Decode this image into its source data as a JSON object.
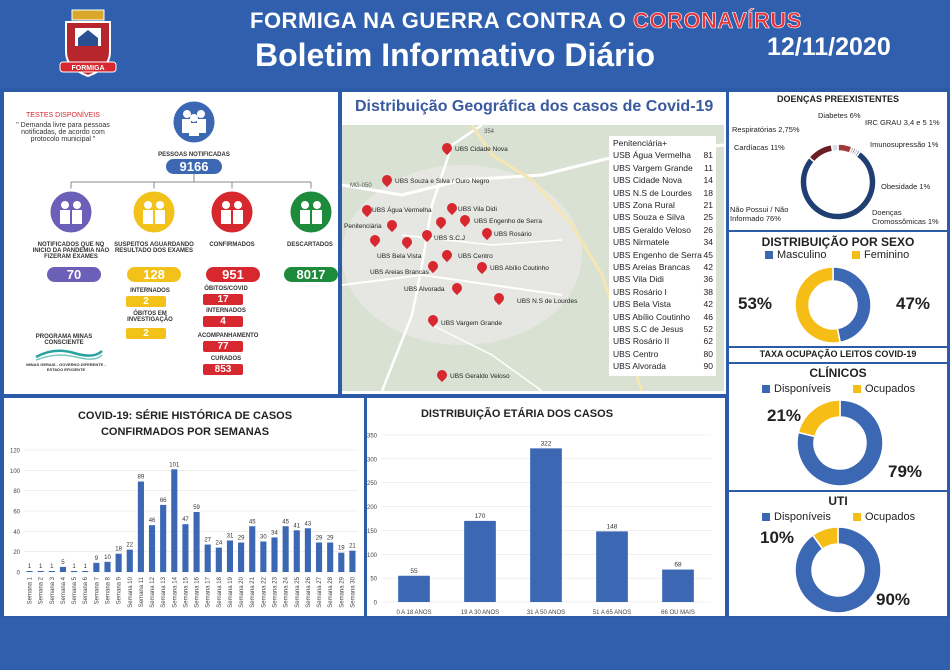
{
  "header": {
    "title_prefix": "FORMIGA NA GUERRA CONTRA O ",
    "title_highlight": "CORONAVÍRUS",
    "subtitle": "Boletim Informativo Diário",
    "date": "12/11/2020",
    "seal_text": "FORMIGA"
  },
  "tests": {
    "title": "TESTES DISPONÍVEIS",
    "note": "\" Demanda livre para pessoas notificadas, de acordo com protocolo municipal \""
  },
  "notified": {
    "label": "PESSOAS NOTIFICADAS",
    "value": "9166"
  },
  "categories": [
    {
      "label": "NOTIFICADOS QUE NO INICIO DA PANDEMIA NÃO FIZERAM EXAMES",
      "value": "70",
      "color": "#6c5fb7"
    },
    {
      "label": "SUSPEITOS AGUARDANDO RESULTADO DOS EXAMES",
      "value": "128",
      "color": "#f2c21a"
    },
    {
      "label": "CONFIRMADOS",
      "value": "951",
      "color": "#d7282f"
    },
    {
      "label": "DESCARTADOS",
      "value": "8017",
      "color": "#1e8a3c"
    }
  ],
  "suspects_sub": [
    {
      "label": "INTERNADOS",
      "value": "2"
    },
    {
      "label": "ÓBITOS EM INVESTIGAÇÃO",
      "value": "2"
    }
  ],
  "confirmed_sub": [
    {
      "label": "ÓBITOS/COVID",
      "value": "17"
    },
    {
      "label": "INTERNADOS",
      "value": "4"
    },
    {
      "label": "ACOMPANHAMENTO",
      "value": "77"
    },
    {
      "label": "CURADOS",
      "value": "853"
    }
  ],
  "program": {
    "label": "PROGRAMA MINAS CONSCIENTE",
    "caption": "MINAS GERAIS - GOVERNO DIFERENTE - ESTADO EFICIENTE"
  },
  "map": {
    "title": "Distribuição Geográfica dos casos de Covid-19",
    "road_labels": [
      "354",
      "MG-050"
    ],
    "pins": [
      {
        "label": "UBS Cidade Nova"
      },
      {
        "label": "UBS Souza e Silva / Ouro Negro"
      },
      {
        "label": "UBS Vila Didi"
      },
      {
        "label": "UBS Água Vermelha"
      },
      {
        "label": "UBS Engenho de Serra"
      },
      {
        "label": "Penitenciária"
      },
      {
        "label": "UBS S.C.J"
      },
      {
        "label": "UBS Rosário"
      },
      {
        "label": "UBS Bela Vista"
      },
      {
        "label": "UBS Centro"
      },
      {
        "label": "UBS Areias Brancas"
      },
      {
        "label": "UBS Abílio Coutinho"
      },
      {
        "label": "UBS Alvorada"
      },
      {
        "label": "UBS N.S de Lourdes"
      },
      {
        "label": "UBS Vargem Grande"
      },
      {
        "label": "UBS Geraldo Veloso"
      }
    ],
    "legend": [
      {
        "name": "Penitenciária+",
        "value": ""
      },
      {
        "name": "USB Água Vermelha",
        "value": "81"
      },
      {
        "name": "UBS Vargem Grande",
        "value": "11"
      },
      {
        "name": "UBS Cidade Nova",
        "value": "14"
      },
      {
        "name": "UBS N.S de Lourdes",
        "value": "18"
      },
      {
        "name": "UBS Zona Rural",
        "value": "21"
      },
      {
        "name": "UBS Souza e Silva",
        "value": "25"
      },
      {
        "name": "UBS Geraldo Veloso",
        "value": "26"
      },
      {
        "name": "UBS Nirmatele",
        "value": "34"
      },
      {
        "name": "UBS Engenho de Serra",
        "value": "45"
      },
      {
        "name": "UBS Areias Brancas",
        "value": "42"
      },
      {
        "name": "UBS Vila Didi",
        "value": "36"
      },
      {
        "name": "UBS Rosário I",
        "value": "38"
      },
      {
        "name": "UBS Bela Vista",
        "value": "42"
      },
      {
        "name": "UBS Abílio Coutinho",
        "value": "46"
      },
      {
        "name": "UBS S.C de Jesus",
        "value": "52"
      },
      {
        "name": "UBS Rosário II",
        "value": "62"
      },
      {
        "name": "UBS Centro",
        "value": "80"
      },
      {
        "name": "UBS Alvorada",
        "value": "90"
      }
    ]
  },
  "preexisting": {
    "title": "DOENÇAS PREEXISTENTES",
    "items": [
      {
        "label": "Diabetes 6%",
        "value": 6,
        "color": "#a33a3a"
      },
      {
        "label": "IRC GRAU 3,4 e 5 1%",
        "value": 1,
        "color": "#6a9fd4"
      },
      {
        "label": "Imunosupressão 1%",
        "value": 1,
        "color": "#c94a4a"
      },
      {
        "label": "Obesidade 1%",
        "value": 1,
        "color": "#8aa6c9"
      },
      {
        "label": "Doenças Cromossômicas 1%",
        "value": 1,
        "color": "#3f6fb0"
      },
      {
        "label": "Não Possui / Não Informado 76%",
        "value": 76,
        "color": "#1f3f73"
      },
      {
        "label": "Cardíacas 11%",
        "value": 11,
        "color": "#6b1f24"
      },
      {
        "label": "Respiratórias 2,75%",
        "value": 2.75,
        "color": "#d8dfe9"
      }
    ]
  },
  "sex": {
    "title": "DISTRIBUIÇÃO POR SEXO",
    "legend": [
      "Masculino",
      "Feminino"
    ],
    "male_pct_label": "47%",
    "female_pct_label": "53%",
    "male": 47,
    "female": 53,
    "colors": [
      "#3b67b3",
      "#f6bd16"
    ]
  },
  "beds": {
    "title": "TAXA OCUPAÇÃO LEITOS COVID-19",
    "clinicos": {
      "title": "CLÍNICOS",
      "legend": [
        "Disponíveis",
        "Ocupados"
      ],
      "available": 79,
      "occupied": 21,
      "available_label": "79%",
      "occupied_label": "21%"
    },
    "uti": {
      "title": "UTI",
      "legend": [
        "Disponíveis",
        "Ocupados"
      ],
      "available": 90,
      "occupied": 10,
      "available_label": "90%",
      "occupied_label": "10%"
    }
  },
  "chart_data": [
    {
      "type": "bar",
      "title": "COVID-19: SÉRIE HISTÓRICA DE CASOS CONFIRMADOS POR SEMANAS",
      "categories": [
        "Semana 1",
        "Semana 2",
        "Semana 3",
        "Semana 4",
        "Semana 5",
        "Semana 6",
        "Semana 7",
        "Semana 8",
        "Semana 9",
        "Semana 10",
        "Semana 11",
        "Semana 12",
        "Semana 13",
        "Semana 14",
        "Semana 15",
        "Semana 16",
        "Semana 17",
        "Semana 18",
        "Semana 19",
        "Semana 20",
        "Semana 21",
        "Semana 22",
        "Semana 23",
        "Semana 24",
        "Semana 25",
        "Semana 26",
        "Semana 27",
        "Semana 28",
        "Semana 29",
        "Semana 30"
      ],
      "values": [
        1,
        1,
        1,
        5,
        1,
        1,
        9,
        10,
        18,
        22,
        89,
        46,
        66,
        101,
        47,
        59,
        27,
        24,
        31,
        29,
        45,
        30,
        34,
        45,
        41,
        43,
        29,
        29,
        19,
        21
      ],
      "ylim": [
        0,
        120
      ],
      "yticks": [
        0,
        20,
        40,
        60,
        80,
        100,
        120
      ],
      "color": "#3b67b3"
    },
    {
      "type": "bar",
      "title": "DISTRIBUIÇÃO ETÁRIA DOS CASOS",
      "categories": [
        "0 A 18 ANOS",
        "19 A 30 ANOS",
        "31 A 50 ANOS",
        "51 A 65 ANOS",
        "66 OU MAIS"
      ],
      "values": [
        55,
        170,
        322,
        148,
        68
      ],
      "ylim": [
        0,
        350
      ],
      "yticks": [
        0,
        50,
        100,
        150,
        200,
        250,
        300,
        350
      ],
      "color": "#3b67b3"
    }
  ]
}
